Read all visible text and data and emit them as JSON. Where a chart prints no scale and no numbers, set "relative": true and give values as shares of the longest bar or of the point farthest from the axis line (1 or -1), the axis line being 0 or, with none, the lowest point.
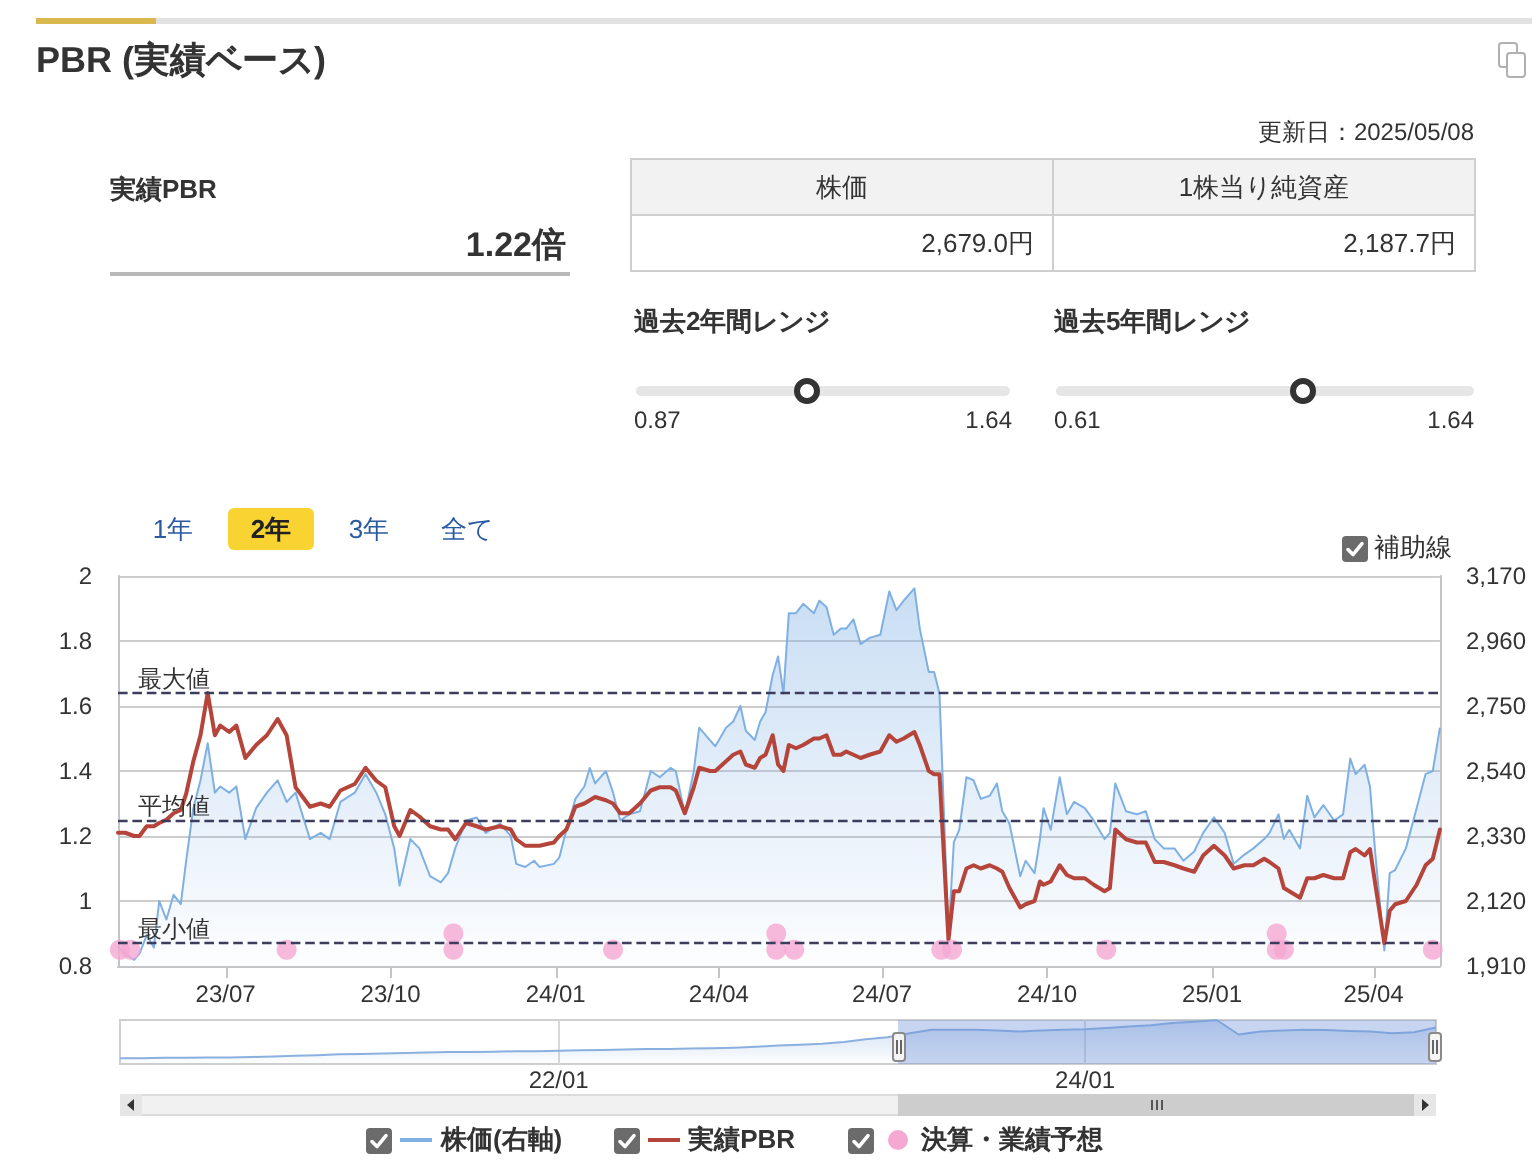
{
  "chart_data": [
    {
      "type": "other",
      "title": "PBR (実績ベース)",
      "annotations": [
        "更新日：2025/05/08",
        "実績PBR",
        "1.22倍",
        "株価",
        "1株当り純資産",
        "2,679.0円",
        "2,187.7円",
        "過去2年間レンジ",
        "0.87",
        "1.64",
        "過去5年間レンジ",
        "0.61",
        "1.64"
      ]
    },
    {
      "type": "line",
      "x": [
        "2023-05-02",
        "2023-05-06",
        "2023-05-11",
        "2023-05-14",
        "2023-05-18",
        "2023-05-22",
        "2023-05-25",
        "2023-05-29",
        "2023-06-02",
        "2023-06-06",
        "2023-06-09",
        "2023-06-13",
        "2023-06-17",
        "2023-06-21",
        "2023-06-25",
        "2023-06-28",
        "2023-07-03",
        "2023-07-07",
        "2023-07-12",
        "2023-07-18",
        "2023-07-24",
        "2023-07-30",
        "2023-08-04",
        "2023-08-09",
        "2023-08-17",
        "2023-08-23",
        "2023-08-28",
        "2023-09-03",
        "2023-09-11",
        "2023-09-17",
        "2023-09-23",
        "2023-09-28",
        "2023-10-03",
        "2023-10-06",
        "2023-10-12",
        "2023-10-17",
        "2023-10-23",
        "2023-10-29",
        "2023-11-02",
        "2023-11-06",
        "2023-11-12",
        "2023-11-18",
        "2023-11-23",
        "2023-12-01",
        "2023-12-07",
        "2023-12-10",
        "2023-12-15",
        "2023-12-20",
        "2023-12-23",
        "2023-12-31",
        "2024-01-03",
        "2024-01-07",
        "2024-01-12",
        "2024-01-17",
        "2024-01-20",
        "2024-01-23",
        "2024-01-29",
        "2024-02-02",
        "2024-02-06",
        "2024-02-11",
        "2024-02-17",
        "2024-02-23",
        "2024-02-28",
        "2024-03-05",
        "2024-03-08",
        "2024-03-13",
        "2024-03-18",
        "2024-03-21",
        "2024-03-27",
        "2024-03-30",
        "2024-04-05",
        "2024-04-09",
        "2024-04-13",
        "2024-04-16",
        "2024-04-21",
        "2024-04-24",
        "2024-04-27",
        "2024-05-01",
        "2024-05-04",
        "2024-05-07",
        "2024-05-10",
        "2024-05-14",
        "2024-05-18",
        "2024-05-24",
        "2024-05-27",
        "2024-05-31",
        "2024-06-04",
        "2024-06-08",
        "2024-06-11",
        "2024-06-15",
        "2024-06-19",
        "2024-06-24",
        "2024-06-30",
        "2024-07-05",
        "2024-07-09",
        "2024-07-13",
        "2024-07-19",
        "2024-07-22",
        "2024-07-27",
        "2024-07-30",
        "2024-08-02",
        "2024-08-07",
        "2024-08-10",
        "2024-08-13",
        "2024-08-17",
        "2024-08-21",
        "2024-08-25",
        "2024-08-30",
        "2024-09-03",
        "2024-09-06",
        "2024-09-10",
        "2024-09-16",
        "2024-09-19",
        "2024-09-24",
        "2024-09-27",
        "2024-09-29",
        "2024-10-03",
        "2024-10-08",
        "2024-10-12",
        "2024-10-16",
        "2024-10-22",
        "2024-10-27",
        "2024-11-02",
        "2024-11-05",
        "2024-11-08",
        "2024-11-14",
        "2024-11-20",
        "2024-11-25",
        "2024-11-30",
        "2024-12-05",
        "2024-12-11",
        "2024-12-16",
        "2024-12-22",
        "2024-12-27",
        "2025-01-02",
        "2025-01-08",
        "2025-01-13",
        "2025-01-19",
        "2025-01-24",
        "2025-01-30",
        "2025-02-02",
        "2025-02-07",
        "2025-02-10",
        "2025-02-13",
        "2025-02-19",
        "2025-02-23",
        "2025-02-27",
        "2025-03-04",
        "2025-03-10",
        "2025-03-15",
        "2025-03-19",
        "2025-03-22",
        "2025-03-27",
        "2025-03-30",
        "2025-04-02",
        "2025-04-07",
        "2025-04-10",
        "2025-04-13",
        "2025-04-19",
        "2025-04-25",
        "2025-04-30",
        "2025-05-04",
        "2025-05-08"
      ],
      "series": [
        {
          "name": "株価(右軸)",
          "type": "area",
          "axis": "y2",
          "color": "#7fb0e4",
          "values": [
            1970,
            1950,
            1930,
            1950,
            2010,
            1970,
            2120,
            2060,
            2140,
            2110,
            2250,
            2420,
            2510,
            2630,
            2470,
            2490,
            2470,
            2490,
            2320,
            2420,
            2470,
            2510,
            2440,
            2470,
            2320,
            2340,
            2320,
            2440,
            2470,
            2530,
            2470,
            2400,
            2290,
            2170,
            2320,
            2290,
            2200,
            2180,
            2210,
            2290,
            2380,
            2390,
            2340,
            2370,
            2330,
            2240,
            2230,
            2250,
            2230,
            2240,
            2260,
            2350,
            2450,
            2490,
            2550,
            2500,
            2540,
            2470,
            2380,
            2400,
            2410,
            2540,
            2520,
            2550,
            2540,
            2400,
            2540,
            2680,
            2640,
            2620,
            2680,
            2700,
            2750,
            2670,
            2640,
            2700,
            2730,
            2850,
            2910,
            2790,
            3050,
            3050,
            3080,
            3050,
            3090,
            3070,
            2980,
            3000,
            3000,
            3030,
            2950,
            2970,
            2980,
            3120,
            3060,
            3090,
            3130,
            3000,
            2860,
            2860,
            2790,
            2010,
            2310,
            2350,
            2520,
            2510,
            2450,
            2460,
            2500,
            2410,
            2370,
            2200,
            2250,
            2210,
            2320,
            2420,
            2350,
            2520,
            2400,
            2440,
            2420,
            2380,
            2320,
            2340,
            2500,
            2410,
            2400,
            2410,
            2320,
            2290,
            2290,
            2250,
            2280,
            2340,
            2390,
            2340,
            2240,
            2270,
            2290,
            2320,
            2340,
            2400,
            2320,
            2350,
            2290,
            2460,
            2390,
            2430,
            2380,
            2400,
            2580,
            2530,
            2560,
            2490,
            2270,
            1960,
            2210,
            2220,
            2290,
            2420,
            2530,
            2540,
            2680
          ]
        },
        {
          "name": "実績PBR",
          "type": "line",
          "color": "#b5453b",
          "values": [
            1.21,
            1.21,
            1.2,
            1.2,
            1.23,
            1.23,
            1.24,
            1.25,
            1.27,
            1.28,
            1.33,
            1.43,
            1.51,
            1.64,
            1.51,
            1.54,
            1.52,
            1.54,
            1.44,
            1.48,
            1.51,
            1.56,
            1.51,
            1.35,
            1.29,
            1.3,
            1.29,
            1.34,
            1.36,
            1.41,
            1.37,
            1.35,
            1.23,
            1.2,
            1.28,
            1.26,
            1.23,
            1.22,
            1.22,
            1.19,
            1.24,
            1.23,
            1.22,
            1.23,
            1.22,
            1.19,
            1.17,
            1.17,
            1.17,
            1.18,
            1.2,
            1.22,
            1.29,
            1.3,
            1.31,
            1.32,
            1.31,
            1.3,
            1.27,
            1.27,
            1.3,
            1.34,
            1.35,
            1.35,
            1.34,
            1.27,
            1.35,
            1.41,
            1.4,
            1.4,
            1.43,
            1.45,
            1.46,
            1.42,
            1.41,
            1.44,
            1.45,
            1.51,
            1.42,
            1.4,
            1.48,
            1.47,
            1.48,
            1.5,
            1.5,
            1.51,
            1.45,
            1.45,
            1.46,
            1.45,
            1.44,
            1.45,
            1.46,
            1.51,
            1.49,
            1.5,
            1.52,
            1.48,
            1.4,
            1.39,
            1.39,
            0.88,
            1.03,
            1.03,
            1.1,
            1.11,
            1.1,
            1.11,
            1.1,
            1.09,
            1.04,
            0.98,
            0.99,
            1,
            1.06,
            1.05,
            1.06,
            1.11,
            1.08,
            1.07,
            1.07,
            1.05,
            1.03,
            1.04,
            1.22,
            1.19,
            1.18,
            1.18,
            1.12,
            1.12,
            1.11,
            1.1,
            1.09,
            1.14,
            1.17,
            1.14,
            1.1,
            1.11,
            1.11,
            1.13,
            1.12,
            1.1,
            1.04,
            1.03,
            1.01,
            1.07,
            1.07,
            1.08,
            1.07,
            1.07,
            1.15,
            1.16,
            1.14,
            1.16,
            1.05,
            0.87,
            0.97,
            0.99,
            1,
            1.05,
            1.11,
            1.13,
            1.22
          ]
        },
        {
          "name": "決算・業績予想",
          "type": "scatter",
          "color": "#f5a8d2",
          "x": [
            "2023-05-03",
            "2023-05-09",
            "2023-08-04",
            "2023-11-05",
            "2023-11-05",
            "2024-02-02",
            "2024-05-03",
            "2024-05-03",
            "2024-05-13",
            "2024-08-03",
            "2024-08-09",
            "2024-11-03",
            "2025-02-06",
            "2025-02-06",
            "2025-02-10",
            "2025-05-04"
          ],
          "values": [
            0.85,
            0.85,
            0.85,
            0.85,
            0.9,
            0.85,
            0.9,
            0.85,
            0.85,
            0.85,
            0.85,
            0.85,
            0.9,
            0.85,
            0.85,
            0.85
          ]
        }
      ],
      "xlim": [
        "2023-05-02",
        "2025-05-08"
      ],
      "xticks": [
        {
          "value": "2023-07-01",
          "label": "23/07"
        },
        {
          "value": "2023-10-01",
          "label": "23/10"
        },
        {
          "value": "2024-01-01",
          "label": "24/01"
        },
        {
          "value": "2024-04-01",
          "label": "24/04"
        },
        {
          "value": "2024-07-01",
          "label": "24/07"
        },
        {
          "value": "2024-10-01",
          "label": "24/10"
        },
        {
          "value": "2025-01-01",
          "label": "25/01"
        },
        {
          "value": "2025-04-01",
          "label": "25/04"
        }
      ],
      "ylim": [
        0.8,
        2
      ],
      "yticks": [
        0.8,
        1,
        1.2,
        1.4,
        1.6,
        1.8,
        2
      ],
      "y2lim": [
        1910,
        3170
      ],
      "y2ticks": [
        {
          "value": 1910,
          "label": "1,910"
        },
        {
          "value": 2120,
          "label": "2,120"
        },
        {
          "value": 2330,
          "label": "2,330"
        },
        {
          "value": 2540,
          "label": "2,540"
        },
        {
          "value": 2750,
          "label": "2,750"
        },
        {
          "value": 2960,
          "label": "2,960"
        },
        {
          "value": 3170,
          "label": "3,170"
        }
      ],
      "ref_lines": [
        {
          "axis": "y",
          "value": 1.64,
          "label": "最大値",
          "color": "#3c3c5c",
          "line_style": "dashed"
        },
        {
          "axis": "y",
          "value": 1.25,
          "label": "平均値",
          "color": "#3c3c5c",
          "line_style": "dashed"
        },
        {
          "axis": "y",
          "value": 0.87,
          "label": "最小値",
          "color": "#3c3c5c",
          "line_style": "dashed"
        }
      ],
      "grid": "y",
      "legend": "bottom",
      "annotations": [
        "1年",
        "2年",
        "3年",
        "全て",
        "補助線"
      ]
    },
    {
      "type": "area",
      "relative": true,
      "color": "#8ab0e0",
      "categories": [
        null,
        null,
        null,
        null,
        null,
        null,
        null,
        null,
        null,
        null,
        null,
        null,
        null,
        null,
        null,
        null,
        null,
        null,
        null,
        null,
        "22/01",
        null,
        null,
        null,
        null,
        null,
        null,
        null,
        null,
        null,
        null,
        null,
        null,
        null,
        null,
        null,
        null,
        null,
        null,
        null,
        null,
        null,
        null,
        null,
        "24/01",
        null,
        null,
        null,
        null,
        null,
        null,
        null,
        null,
        null,
        null,
        null,
        null,
        null,
        null,
        null,
        null
      ],
      "values": [
        0.13,
        0.13,
        0.14,
        0.14,
        0.15,
        0.15,
        0.16,
        0.17,
        0.19,
        0.2,
        0.22,
        0.23,
        0.24,
        0.25,
        0.26,
        0.27,
        0.27,
        0.28,
        0.29,
        0.29,
        0.3,
        0.31,
        0.32,
        0.33,
        0.34,
        0.34,
        0.35,
        0.36,
        0.37,
        0.39,
        0.42,
        0.44,
        0.46,
        0.5,
        0.56,
        0.61,
        0.7,
        0.78,
        0.78,
        0.78,
        0.76,
        0.74,
        0.76,
        0.78,
        0.79,
        0.82,
        0.85,
        0.88,
        0.93,
        0.96,
        1,
        0.67,
        0.74,
        0.76,
        0.78,
        0.77,
        0.75,
        0.74,
        0.7,
        0.72,
        0.83
      ],
      "grid": "x"
    }
  ]
}
